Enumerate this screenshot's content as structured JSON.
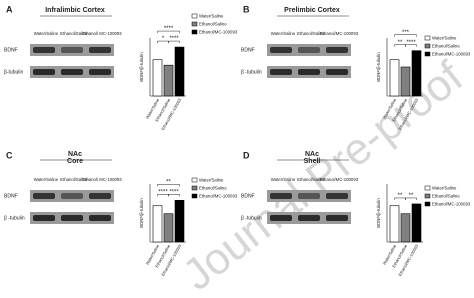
{
  "chart_data": [
    {
      "type": "bar",
      "label": "A",
      "title": "Infralimbic Cortex",
      "lanes": [
        "Water/Saline",
        "Ethanol/Saline",
        "Ethanol/ MC-100093"
      ],
      "blot_labels": [
        "BDNF",
        "β-tubulin"
      ],
      "ylabel": "BDNF/β-tubulin",
      "categories": [
        "Water/Saline",
        "Ethanol/Saline",
        "Ethanol/MC-100093"
      ],
      "values": [
        100,
        85,
        135
      ],
      "colors": [
        "#ffffff",
        "#808080",
        "#000000"
      ],
      "ylim": [
        0,
        160
      ],
      "significance": [
        "*",
        "****",
        "****"
      ]
    },
    {
      "type": "bar",
      "label": "B",
      "title": "Prelimbic Cortex",
      "lanes": [
        "Water/Saline",
        "Ethanol/Saline",
        "Ethanol/MC-100093"
      ],
      "blot_labels": [
        "BDNF",
        "β -tubulin"
      ],
      "ylabel": "BDNF/β-tubulin",
      "categories": [
        "Water/Saline",
        "Ethanol/Saline",
        "Ethanol/MC-100093"
      ],
      "values": [
        100,
        80,
        125
      ],
      "colors": [
        "#ffffff",
        "#808080",
        "#000000"
      ],
      "ylim": [
        0,
        160
      ],
      "significance": [
        "**",
        "****",
        "***"
      ]
    },
    {
      "type": "bar",
      "label": "C",
      "title": "NAc\nCore",
      "lanes": [
        "Water/Saline",
        "Ethanol/Saline",
        "Ethanol/ MC-100093"
      ],
      "blot_labels": [
        "BDNF",
        "β -tubulin"
      ],
      "ylabel": "BDNF/β-tubulin",
      "categories": [
        "Water/Saline",
        "Ethanol/Saline",
        "Ethanol/MC-100093"
      ],
      "values": [
        100,
        78,
        115
      ],
      "colors": [
        "#ffffff",
        "#808080",
        "#000000"
      ],
      "ylim": [
        0,
        160
      ],
      "significance": [
        "****",
        "****",
        "**"
      ]
    },
    {
      "type": "bar",
      "label": "D",
      "title": "NAc\nShell",
      "lanes": [
        "Water/Saline",
        "Ethanol/Saline",
        "Ethanol/MC-100093"
      ],
      "blot_labels": [
        "BDNF",
        "β -tubulin"
      ],
      "ylabel": "BDNF/β-tubulin",
      "categories": [
        "Water/Saline",
        "Ethanol/Saline",
        "Ethanol/MC-100093"
      ],
      "values": [
        100,
        78,
        105
      ],
      "colors": [
        "#ffffff",
        "#808080",
        "#000000"
      ],
      "ylim": [
        0,
        160
      ],
      "significance": [
        "**",
        "**"
      ]
    }
  ],
  "watermark": "Journal Pre-proof"
}
